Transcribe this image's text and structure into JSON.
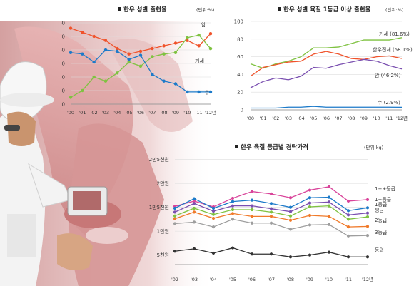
{
  "chart_data": [
    {
      "type": "line",
      "title": "한우 성별 출현율",
      "unit": "(단위:%)",
      "categories": [
        "'00",
        "'01",
        "'02",
        "'03",
        "'04",
        "'05",
        "'06",
        "'07",
        "'08",
        "'09",
        "'10",
        "'11",
        "'12년"
      ],
      "yticks": [
        0,
        10,
        20,
        30,
        40,
        50,
        60
      ],
      "ylim": [
        0,
        60
      ],
      "series": [
        {
          "name": "암",
          "color": "#f0522a",
          "values": [
            56,
            53,
            50,
            47,
            41,
            37,
            39,
            41,
            43,
            45,
            47,
            43,
            52
          ]
        },
        {
          "name": "거세",
          "color": "#7fc241",
          "values": [
            5,
            10,
            20,
            17,
            23,
            31,
            28,
            35,
            37,
            38,
            49,
            51,
            41
          ]
        },
        {
          "name": "수",
          "color": "#1c7ac9",
          "values": [
            38,
            37,
            31,
            40,
            39,
            33,
            36,
            22,
            17,
            15,
            9,
            9,
            9
          ]
        }
      ]
    },
    {
      "type": "line",
      "title": "한우 성별 육질 1등급 이상 출현율",
      "unit": "(단위:%)",
      "categories": [
        "'00",
        "'01",
        "'02",
        "'03",
        "'04",
        "'05",
        "'06",
        "'07",
        "'08",
        "'09",
        "'10",
        "'11",
        "'12년"
      ],
      "yticks": [
        0,
        20,
        40,
        60,
        80,
        100
      ],
      "ylim": [
        0,
        100
      ],
      "series": [
        {
          "name": "거세",
          "value_label": "거세 (81.6%)",
          "color": "#7fc241",
          "values": [
            52,
            47,
            52,
            55,
            60,
            70,
            70,
            71,
            75,
            79,
            79,
            79,
            81.6
          ]
        },
        {
          "name": "한우전체",
          "value_label": "한우전체 (58.1%)",
          "color": "#f0522a",
          "values": [
            38,
            48,
            51,
            54,
            55,
            63,
            66,
            63,
            58,
            57,
            60,
            61,
            58.1
          ]
        },
        {
          "name": "암",
          "value_label": "암 (46.2%)",
          "color": "#7a4fb0",
          "values": [
            25,
            32,
            36,
            34,
            38,
            48,
            47,
            51,
            54,
            57,
            55,
            50,
            46.2
          ]
        },
        {
          "name": "수",
          "value_label": "수 (2.9%)",
          "color": "#1c7ac9",
          "values": [
            2,
            2,
            2,
            3,
            3,
            4,
            3,
            3,
            3,
            3,
            3,
            3,
            2.9
          ]
        }
      ]
    },
    {
      "type": "line",
      "title": "한우 육질 등급별 경락가격",
      "unit": "(단위:kg)",
      "categories": [
        "'02",
        "'03",
        "'04",
        "'05",
        "'06",
        "'07",
        "'08",
        "'09",
        "'10",
        "'11",
        "'12년"
      ],
      "ytick_labels": [
        "5천원",
        "1만원",
        "1만5천원",
        "2만원",
        "2만5천원"
      ],
      "yticks": [
        5000,
        10000,
        15000,
        20000,
        25000
      ],
      "ylim": [
        3000,
        26000
      ],
      "series": [
        {
          "name": "1++등급",
          "color": "#d9449a",
          "values": [
            15200,
            16300,
            15100,
            16900,
            18300,
            17800,
            17000,
            18600,
            19300,
            16300,
            16600
          ]
        },
        {
          "name": "1+등급",
          "color": "#1c7ac9",
          "values": [
            14800,
            16800,
            14800,
            16200,
            16500,
            15800,
            15000,
            17000,
            17100,
            14300,
            14900
          ]
        },
        {
          "name": "1등급",
          "color": "#7a4fb0",
          "values": [
            14000,
            15800,
            14200,
            15300,
            15300,
            14700,
            14100,
            15900,
            16100,
            13400,
            13800
          ]
        },
        {
          "name": "평균",
          "color": "#7fc241",
          "values": [
            13200,
            14800,
            13500,
            14500,
            14500,
            14000,
            13200,
            15100,
            15300,
            12500,
            13000
          ]
        },
        {
          "name": "2등급",
          "color": "#f07a2a",
          "values": [
            12600,
            14000,
            12700,
            13700,
            13100,
            13100,
            12300,
            13300,
            13100,
            10900,
            11000
          ]
        },
        {
          "name": "3등급",
          "color": "#9e9e9e",
          "values": [
            11600,
            11900,
            10900,
            12500,
            11700,
            11700,
            10400,
            11300,
            11400,
            9000,
            9100
          ]
        },
        {
          "name": "등외",
          "color": "#333333",
          "values": [
            5800,
            6300,
            5400,
            6500,
            5200,
            5200,
            4600,
            5000,
            5600,
            4600,
            4600
          ]
        }
      ]
    }
  ]
}
